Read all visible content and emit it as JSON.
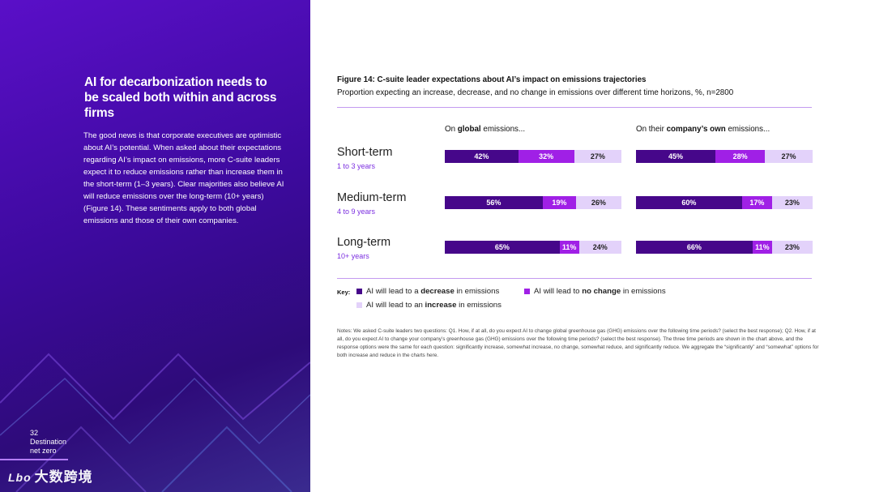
{
  "left": {
    "headline": "AI for decarbonization needs to be scaled both within and across firms",
    "body": "The good news is that corporate executives are optimistic about AI’s potential. When asked about their expectations regarding AI’s impact on emissions, more C-suite leaders expect it to reduce emissions rather than increase them in the short-term (1–3 years). Clear majorities also believe AI will reduce emissions over the long-term (10+ years) (Figure 14). These sentiments apply to both global emissions and those of their own companies.",
    "page_number": "32",
    "section_line1": "Destination",
    "section_line2": "net zero",
    "watermark": "大数跨境",
    "watermark_logo": "Lbo"
  },
  "colors": {
    "decrease": "#46078a",
    "no_change": "#a020e6",
    "increase": "#e3d2fa"
  },
  "chart_data": {
    "type": "bar",
    "title": "Figure 14: C-suite leader expectations about AI’s impact on emissions trajectories",
    "subtitle": "Proportion expecting an increase, decrease, and no change in emissions over different time horizons, %, n=2800",
    "stacked": true,
    "orientation": "horizontal",
    "panels": [
      {
        "pre": "On ",
        "bold": "global",
        "post": " emissions...",
        "rows": [
          {
            "decrease": 42,
            "no_change": 32,
            "increase": 27
          },
          {
            "decrease": 56,
            "no_change": 19,
            "increase": 26
          },
          {
            "decrease": 65,
            "no_change": 11,
            "increase": 24
          }
        ]
      },
      {
        "pre": "On their ",
        "bold": "company’s own",
        "post": " emissions...",
        "rows": [
          {
            "decrease": 45,
            "no_change": 28,
            "increase": 27
          },
          {
            "decrease": 60,
            "no_change": 17,
            "increase": 23
          },
          {
            "decrease": 66,
            "no_change": 11,
            "increase": 23
          }
        ]
      }
    ],
    "categories": [
      {
        "label": "Short-term",
        "sub": "1 to 3 years"
      },
      {
        "label": "Medium-term",
        "sub": "4 to 9 years"
      },
      {
        "label": "Long-term",
        "sub": "10+ years"
      }
    ],
    "legend": {
      "key_label": "Key:",
      "decrease": {
        "pre": "AI will lead to a ",
        "bold": "decrease",
        "post": " in emissions"
      },
      "no_change": {
        "pre": "AI will lead to ",
        "bold": "no change",
        "post": " in emissions"
      },
      "increase": {
        "pre": "AI will lead to an ",
        "bold": "increase",
        "post": " in emissions"
      }
    },
    "notes": "Notes: We asked C-suite leaders two questions: Q1. How, if at all, do you expect AI to change global greenhouse gas (GHG) emissions over the following time periods? (select the best response); Q2. How, if at all, do you expect AI to change your company’s greenhouse gas (GHG) emissions over the following time periods? (select the best response). The three time periods are shown in the chart above, and the response options were the same for each question: significantly increase, somewhat increase, no change, somewhat reduce, and significantly reduce. We aggregate the “significantly” and “somewhat” options for both increase and reduce in the charts here."
  }
}
